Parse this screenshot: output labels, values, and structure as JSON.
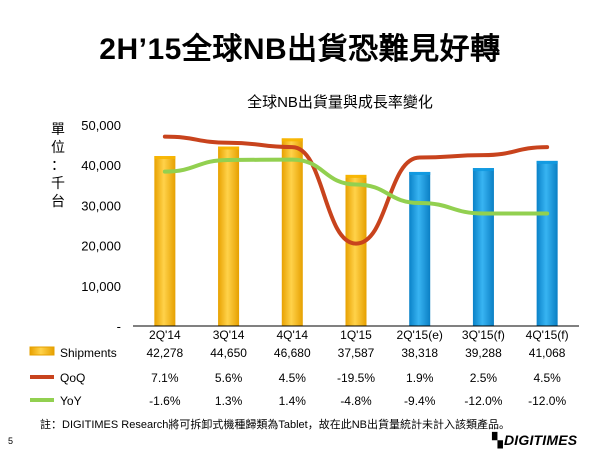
{
  "slide": {
    "title": "2H’15全球NB出貨恐難見好轉",
    "page_number": "5",
    "note": "註：DIGITIMES Research將可拆卸式機種歸類為Tablet，故在此NB出貨量統計未計入該類產品。",
    "logo_text": "DIGITIMES",
    "logo_mark": "▚"
  },
  "chart_data": {
    "type": "bar",
    "title": "全球NB出貨量與成長率變化",
    "ylabel": "單位：千台",
    "categories": [
      "2Q'14",
      "3Q'14",
      "4Q'14",
      "1Q'15",
      "2Q'15(e)",
      "3Q'15(f)",
      "4Q'15(f)"
    ],
    "ylim": [
      0,
      50000
    ],
    "yticks": [
      "-",
      "10,000",
      "20,000",
      "30,000",
      "40,000",
      "50,000"
    ],
    "bar_colors": [
      "#f7b500",
      "#f7b500",
      "#f7b500",
      "#f7b500",
      "#1199e0",
      "#1199e0",
      "#1199e0"
    ],
    "series": [
      {
        "name": "Shipments",
        "type": "bar",
        "color": "#f7b500",
        "values": [
          42278,
          44650,
          46680,
          37587,
          38318,
          39288,
          41068
        ],
        "labels": [
          "42,278",
          "44,650",
          "46,680",
          "37,587",
          "38,318",
          "39,288",
          "41,068"
        ]
      },
      {
        "name": "QoQ",
        "type": "line",
        "color": "#c8431d",
        "values": [
          7.1,
          5.6,
          4.5,
          -19.5,
          1.9,
          2.5,
          4.5
        ],
        "labels": [
          "7.1%",
          "5.6%",
          "4.5%",
          "-19.5%",
          "1.9%",
          "2.5%",
          "4.5%"
        ]
      },
      {
        "name": "YoY",
        "type": "line",
        "color": "#92d050",
        "values": [
          -1.6,
          1.3,
          1.4,
          -4.8,
          -9.4,
          -12.0,
          -12.0
        ],
        "labels": [
          "-1.6%",
          "1.3%",
          "1.4%",
          "-4.8%",
          "-9.4%",
          "-12.0%",
          "-12.0%"
        ]
      }
    ],
    "grid": false,
    "legend": "table-bottom"
  }
}
